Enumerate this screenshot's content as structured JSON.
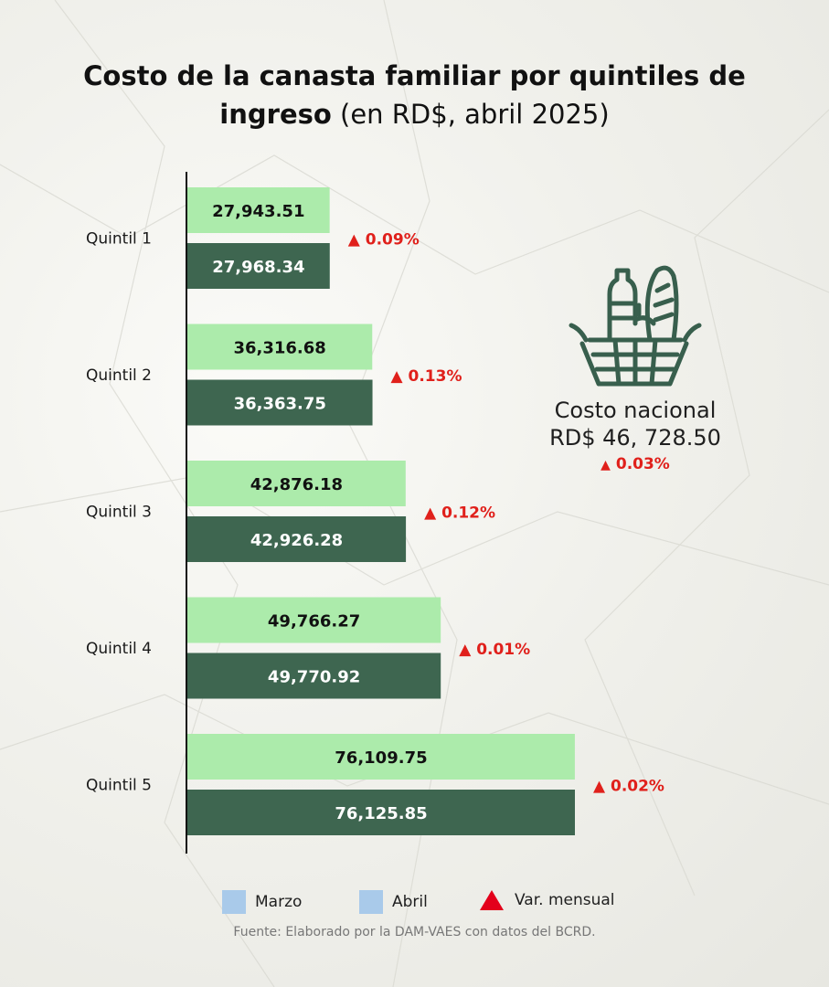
{
  "title": {
    "bold": "Costo de la canasta familiar por quintiles de ingreso",
    "light": "(en RD$, abril 2025)"
  },
  "colors": {
    "marzo_bar": "#acebab",
    "abril_bar": "#3e6650",
    "legend_swatch": "#a9caea",
    "change_red": "#e0201b",
    "icon": "#385f4d"
  },
  "national": {
    "icon": "grocery-basket-icon",
    "label": "Costo nacional",
    "value": "RD$ 46, 728.50",
    "change": "0.03%"
  },
  "legend": {
    "marzo": "Marzo",
    "abril": "Abril",
    "var": "Var. mensual"
  },
  "source": "Fuente: Elaborado por la DAM-VAES con datos del BCRD.",
  "chart_data": {
    "type": "bar",
    "orientation": "horizontal",
    "categories": [
      "Quintil 1",
      "Quintil 2",
      "Quintil 3",
      "Quintil 4",
      "Quintil 5"
    ],
    "series": [
      {
        "name": "Marzo",
        "values": [
          27943.51,
          36316.68,
          42876.18,
          49766.27,
          76109.75
        ],
        "labels": [
          "27,943.51",
          "36,316.68",
          "42,876.18",
          "49,766.27",
          "76,109.75"
        ]
      },
      {
        "name": "Abril",
        "values": [
          27968.34,
          36363.75,
          42926.28,
          49770.92,
          76125.85
        ],
        "labels": [
          "27,968.34",
          "36,363.75",
          "42,926.28",
          "49,770.92",
          "76,125.85"
        ]
      }
    ],
    "changes": [
      "0.09%",
      "0.13%",
      "0.12%",
      "0.01%",
      "0.02%"
    ],
    "legend_position": "bottom",
    "grid": false
  }
}
